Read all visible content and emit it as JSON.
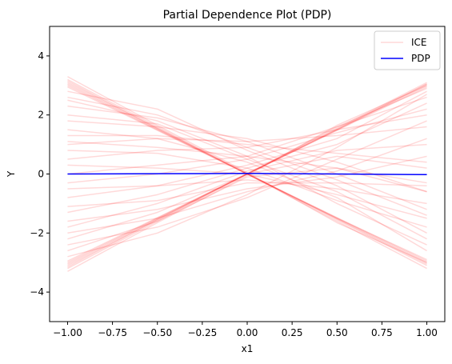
{
  "chart_data": {
    "type": "line",
    "title": "Partial Dependence Plot (PDP)",
    "xlabel": "x1",
    "ylabel": "Y",
    "xlim": [
      -1.1,
      1.1
    ],
    "ylim": [
      -5,
      5
    ],
    "xticks": [
      -1.0,
      -0.75,
      -0.5,
      -0.25,
      0.0,
      0.25,
      0.5,
      0.75,
      1.0
    ],
    "xtick_labels": [
      "−1.00",
      "−0.75",
      "−0.50",
      "−0.25",
      "0.00",
      "0.25",
      "0.50",
      "0.75",
      "1.00"
    ],
    "yticks": [
      -4,
      -2,
      0,
      2,
      4
    ],
    "ytick_labels": [
      "−4",
      "−2",
      "0",
      "2",
      "4"
    ],
    "grid": false,
    "legend": {
      "placement": "top-right",
      "entries": [
        {
          "label": "ICE",
          "color": "#ff0000",
          "alpha": 0.15
        },
        {
          "label": "PDP",
          "color": "#0000ff",
          "alpha": 1.0
        }
      ]
    },
    "series": [
      {
        "name": "PDP",
        "color": "#0000ff",
        "x": [
          -1.0,
          -0.5,
          0.0,
          0.5,
          1.0
        ],
        "y": [
          0.0,
          0.01,
          0.02,
          0.0,
          -0.02
        ]
      }
    ],
    "ice": {
      "color": "#ff0000",
      "x": [
        -1.0,
        -0.5,
        0.0,
        0.5,
        1.0
      ],
      "curves": [
        [
          3.0,
          1.5,
          0.0,
          -1.5,
          -3.0
        ],
        [
          3.05,
          1.52,
          0.0,
          -1.52,
          -3.05
        ],
        [
          3.1,
          1.55,
          0.02,
          -1.55,
          -3.1
        ],
        [
          2.95,
          1.48,
          0.0,
          -1.48,
          -2.95
        ],
        [
          3.2,
          1.6,
          0.0,
          -1.6,
          -3.2
        ],
        [
          3.3,
          1.65,
          0.05,
          -1.65,
          -3.0
        ],
        [
          3.15,
          1.55,
          0.0,
          -1.5,
          -2.9
        ],
        [
          -3.0,
          -1.5,
          0.0,
          1.5,
          3.0
        ],
        [
          -3.05,
          -1.52,
          0.0,
          1.52,
          3.05
        ],
        [
          -3.1,
          -1.55,
          0.02,
          1.55,
          3.1
        ],
        [
          -2.95,
          -1.48,
          0.0,
          1.48,
          2.95
        ],
        [
          -3.2,
          -1.6,
          0.0,
          1.6,
          2.9
        ],
        [
          -3.3,
          -1.65,
          -0.05,
          1.65,
          3.0
        ],
        [
          -3.15,
          -1.55,
          0.0,
          1.5,
          3.05
        ],
        [
          2.6,
          2.0,
          0.9,
          -0.2,
          -1.4
        ],
        [
          2.3,
          1.9,
          1.1,
          0.0,
          -1.2
        ],
        [
          1.8,
          1.6,
          1.2,
          0.4,
          -0.6
        ],
        [
          1.3,
          1.3,
          1.0,
          0.7,
          0.4
        ],
        [
          1.0,
          1.2,
          1.1,
          1.3,
          1.6
        ],
        [
          0.5,
          0.8,
          0.9,
          1.5,
          2.0
        ],
        [
          0.0,
          0.3,
          0.6,
          1.6,
          2.6
        ],
        [
          -0.3,
          0.0,
          0.5,
          1.4,
          2.2
        ],
        [
          -0.8,
          -0.4,
          0.3,
          1.2,
          2.8
        ],
        [
          -1.3,
          -0.7,
          0.2,
          1.0,
          2.4
        ],
        [
          -1.8,
          -1.0,
          0.1,
          0.8,
          1.0
        ],
        [
          -2.2,
          -1.3,
          0.0,
          0.6,
          0.2
        ],
        [
          -2.6,
          -1.6,
          -0.1,
          0.2,
          -0.6
        ],
        [
          2.0,
          1.7,
          0.5,
          -0.6,
          -2.2
        ],
        [
          1.5,
          1.2,
          0.4,
          -0.8,
          -2.6
        ],
        [
          0.8,
          0.7,
          0.2,
          -0.9,
          -1.8
        ],
        [
          0.3,
          0.2,
          0.0,
          -0.7,
          -1.5
        ],
        [
          -0.5,
          -0.4,
          -0.2,
          -0.5,
          -1.0
        ],
        [
          -1.1,
          -0.9,
          -0.3,
          -0.3,
          -0.4
        ],
        [
          -1.6,
          -1.2,
          -0.5,
          -0.1,
          0.6
        ],
        [
          -2.0,
          -1.5,
          -0.6,
          0.1,
          1.2
        ],
        [
          2.8,
          2.2,
          0.8,
          -0.4,
          -2.0
        ],
        [
          2.5,
          1.8,
          0.6,
          -1.0,
          -2.4
        ],
        [
          -2.8,
          -2.0,
          -0.7,
          0.9,
          2.7
        ],
        [
          -2.4,
          -1.8,
          -0.8,
          0.5,
          1.8
        ],
        [
          1.1,
          0.9,
          0.6,
          0.2,
          -0.3
        ]
      ]
    }
  }
}
